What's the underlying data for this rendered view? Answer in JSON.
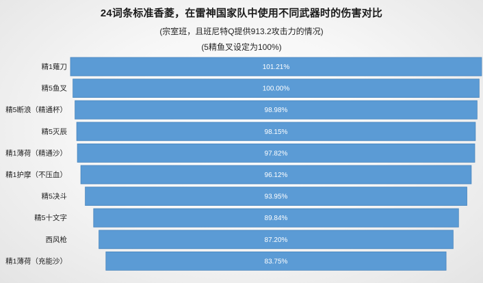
{
  "colors": {
    "bar": "#5b9bd5",
    "bar_stroke": "#4a86bd",
    "value_text": "#ffffff",
    "label_text": "#222222"
  },
  "chart_data": {
    "type": "bar",
    "orientation": "horizontal",
    "title": "24词条标准香菱，在雷神国家队中使用不同武器时的伤害对比",
    "subtitle": "(宗室班，且班尼特Q提供913.2攻击力的情况)",
    "subtitle2": "(5精鱼叉设定为100%)",
    "xlabel": "",
    "ylabel": "",
    "grid": false,
    "legend": "none",
    "value_suffix": "%",
    "categories": [
      "精1薙刀",
      "精5鱼叉",
      "精5断浪（精通杯）",
      "精5灭辰",
      "精1薄荷（精通沙）",
      "精1护摩（不压血）",
      "精5决斗",
      "精5十文字",
      "西风枪",
      "精1薄荷（充能沙）"
    ],
    "values": [
      101.21,
      100.0,
      98.98,
      98.15,
      97.82,
      96.12,
      93.95,
      89.84,
      87.2,
      83.75
    ],
    "value_labels": [
      "101.21%",
      "100.00%",
      "98.98%",
      "98.15%",
      "97.82%",
      "96.12%",
      "93.95%",
      "89.84%",
      "87.20%",
      "83.75%"
    ]
  }
}
